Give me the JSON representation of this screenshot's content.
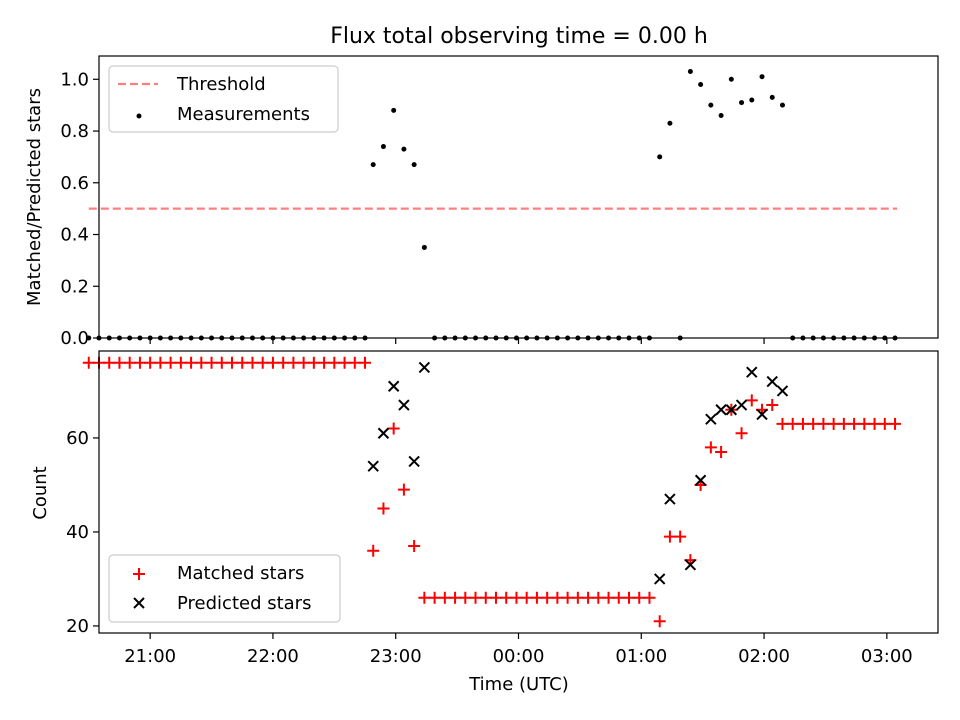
{
  "chart_data": [
    {
      "type": "scatter",
      "title": "Flux total observing time = 0.00 h",
      "xlabel": "",
      "ylabel": "Matched/Predicted stars",
      "xlim": [
        "20:35",
        "03:25"
      ],
      "ylim": [
        0,
        1.09
      ],
      "y_ticks": [
        "0.0",
        "0.2",
        "0.4",
        "0.6",
        "0.8",
        "1.0"
      ],
      "legend": {
        "placement": "top-left",
        "entries": [
          "Threshold",
          "Measurements"
        ]
      },
      "threshold": {
        "name": "Threshold",
        "value": 0.5,
        "x_range": [
          "20:30",
          "03:05"
        ],
        "color": "#ff7f7f",
        "style": "dashed"
      },
      "series": [
        {
          "name": "Measurements",
          "color": "#000000",
          "points": [
            [
              "20:30",
              0
            ],
            [
              "20:35",
              0
            ],
            [
              "20:40",
              0
            ],
            [
              "20:45",
              0
            ],
            [
              "20:50",
              0
            ],
            [
              "20:55",
              0
            ],
            [
              "21:00",
              0
            ],
            [
              "21:05",
              0
            ],
            [
              "21:10",
              0
            ],
            [
              "21:15",
              0
            ],
            [
              "21:20",
              0
            ],
            [
              "21:25",
              0
            ],
            [
              "21:30",
              0
            ],
            [
              "21:35",
              0
            ],
            [
              "21:40",
              0
            ],
            [
              "21:45",
              0
            ],
            [
              "21:50",
              0
            ],
            [
              "21:55",
              0
            ],
            [
              "22:00",
              0
            ],
            [
              "22:05",
              0
            ],
            [
              "22:10",
              0
            ],
            [
              "22:15",
              0
            ],
            [
              "22:20",
              0
            ],
            [
              "22:25",
              0
            ],
            [
              "22:30",
              0
            ],
            [
              "22:35",
              0
            ],
            [
              "22:40",
              0
            ],
            [
              "22:45",
              0
            ],
            [
              "22:49",
              0.67
            ],
            [
              "22:54",
              0.74
            ],
            [
              "22:59",
              0.88
            ],
            [
              "23:04",
              0.73
            ],
            [
              "23:09",
              0.67
            ],
            [
              "23:14",
              0.35
            ],
            [
              "23:19",
              0
            ],
            [
              "23:24",
              0
            ],
            [
              "23:29",
              0
            ],
            [
              "23:34",
              0
            ],
            [
              "23:39",
              0
            ],
            [
              "23:44",
              0
            ],
            [
              "23:49",
              0
            ],
            [
              "23:54",
              0
            ],
            [
              "23:59",
              0
            ],
            [
              "00:04",
              0
            ],
            [
              "00:09",
              0
            ],
            [
              "00:14",
              0
            ],
            [
              "00:19",
              0
            ],
            [
              "00:24",
              0
            ],
            [
              "00:29",
              0
            ],
            [
              "00:34",
              0
            ],
            [
              "00:39",
              0
            ],
            [
              "00:44",
              0
            ],
            [
              "00:49",
              0
            ],
            [
              "00:54",
              0
            ],
            [
              "00:59",
              0
            ],
            [
              "01:04",
              0
            ],
            [
              "01:09",
              0.7
            ],
            [
              "01:14",
              0.83
            ],
            [
              "01:19",
              0
            ],
            [
              "01:24",
              1.03
            ],
            [
              "01:29",
              0.98
            ],
            [
              "01:34",
              0.9
            ],
            [
              "01:39",
              0.86
            ],
            [
              "01:44",
              1.0
            ],
            [
              "01:49",
              0.91
            ],
            [
              "01:54",
              0.92
            ],
            [
              "01:59",
              1.01
            ],
            [
              "02:04",
              0.93
            ],
            [
              "02:09",
              0.9
            ],
            [
              "02:14",
              0
            ],
            [
              "02:19",
              0
            ],
            [
              "02:24",
              0
            ],
            [
              "02:29",
              0
            ],
            [
              "02:34",
              0
            ],
            [
              "02:39",
              0
            ],
            [
              "02:44",
              0
            ],
            [
              "02:49",
              0
            ],
            [
              "02:54",
              0
            ],
            [
              "02:59",
              0
            ],
            [
              "03:04",
              0
            ]
          ]
        }
      ]
    },
    {
      "type": "scatter",
      "title": "",
      "xlabel": "Time (UTC)",
      "ylabel": "Count",
      "xlim": [
        "20:35",
        "03:25"
      ],
      "ylim": [
        18.5,
        78.5
      ],
      "x_ticks": [
        "21:00",
        "22:00",
        "23:00",
        "00:00",
        "01:00",
        "02:00",
        "03:00"
      ],
      "y_ticks": [
        "20",
        "40",
        "60"
      ],
      "legend": {
        "placement": "bottom-left",
        "entries": [
          "Matched stars",
          "Predicted stars"
        ]
      },
      "series": [
        {
          "name": "Matched stars",
          "marker": "plus",
          "color": "#ff0000",
          "points": [
            [
              "20:30",
              76
            ],
            [
              "20:35",
              76
            ],
            [
              "20:40",
              76
            ],
            [
              "20:45",
              76
            ],
            [
              "20:50",
              76
            ],
            [
              "20:55",
              76
            ],
            [
              "21:00",
              76
            ],
            [
              "21:05",
              76
            ],
            [
              "21:10",
              76
            ],
            [
              "21:15",
              76
            ],
            [
              "21:20",
              76
            ],
            [
              "21:25",
              76
            ],
            [
              "21:30",
              76
            ],
            [
              "21:35",
              76
            ],
            [
              "21:40",
              76
            ],
            [
              "21:45",
              76
            ],
            [
              "21:50",
              76
            ],
            [
              "21:55",
              76
            ],
            [
              "22:00",
              76
            ],
            [
              "22:05",
              76
            ],
            [
              "22:10",
              76
            ],
            [
              "22:15",
              76
            ],
            [
              "22:20",
              76
            ],
            [
              "22:25",
              76
            ],
            [
              "22:30",
              76
            ],
            [
              "22:35",
              76
            ],
            [
              "22:40",
              76
            ],
            [
              "22:45",
              76
            ],
            [
              "22:49",
              36
            ],
            [
              "22:54",
              45
            ],
            [
              "22:59",
              62
            ],
            [
              "23:04",
              49
            ],
            [
              "23:09",
              37
            ],
            [
              "23:14",
              26
            ],
            [
              "23:19",
              26
            ],
            [
              "23:24",
              26
            ],
            [
              "23:29",
              26
            ],
            [
              "23:34",
              26
            ],
            [
              "23:39",
              26
            ],
            [
              "23:44",
              26
            ],
            [
              "23:49",
              26
            ],
            [
              "23:54",
              26
            ],
            [
              "23:59",
              26
            ],
            [
              "00:04",
              26
            ],
            [
              "00:09",
              26
            ],
            [
              "00:14",
              26
            ],
            [
              "00:19",
              26
            ],
            [
              "00:24",
              26
            ],
            [
              "00:29",
              26
            ],
            [
              "00:34",
              26
            ],
            [
              "00:39",
              26
            ],
            [
              "00:44",
              26
            ],
            [
              "00:49",
              26
            ],
            [
              "00:54",
              26
            ],
            [
              "00:59",
              26
            ],
            [
              "01:04",
              26
            ],
            [
              "01:09",
              21
            ],
            [
              "01:14",
              39
            ],
            [
              "01:19",
              39
            ],
            [
              "01:24",
              34
            ],
            [
              "01:29",
              50
            ],
            [
              "01:34",
              58
            ],
            [
              "01:39",
              57
            ],
            [
              "01:44",
              66
            ],
            [
              "01:49",
              61
            ],
            [
              "01:54",
              68
            ],
            [
              "01:59",
              66
            ],
            [
              "02:04",
              67
            ],
            [
              "02:09",
              63
            ],
            [
              "02:14",
              63
            ],
            [
              "02:19",
              63
            ],
            [
              "02:24",
              63
            ],
            [
              "02:29",
              63
            ],
            [
              "02:34",
              63
            ],
            [
              "02:39",
              63
            ],
            [
              "02:44",
              63
            ],
            [
              "02:49",
              63
            ],
            [
              "02:54",
              63
            ],
            [
              "02:59",
              63
            ],
            [
              "03:04",
              63
            ]
          ]
        },
        {
          "name": "Predicted stars",
          "marker": "x",
          "color": "#000000",
          "points": [
            [
              "22:49",
              54
            ],
            [
              "22:54",
              61
            ],
            [
              "22:59",
              71
            ],
            [
              "23:04",
              67
            ],
            [
              "23:09",
              55
            ],
            [
              "23:14",
              75
            ],
            [
              "01:09",
              30
            ],
            [
              "01:14",
              47
            ],
            [
              "01:24",
              33
            ],
            [
              "01:29",
              51
            ],
            [
              "01:34",
              64
            ],
            [
              "01:39",
              66
            ],
            [
              "01:44",
              66
            ],
            [
              "01:49",
              67
            ],
            [
              "01:54",
              74
            ],
            [
              "01:59",
              65
            ],
            [
              "02:04",
              72
            ],
            [
              "02:09",
              70
            ]
          ]
        }
      ]
    }
  ]
}
